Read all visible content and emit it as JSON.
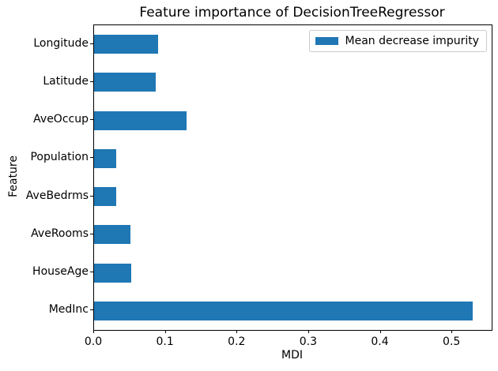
{
  "chart_data": {
    "type": "bar",
    "orientation": "horizontal",
    "title": "Feature importance of DecisionTreeRegressor",
    "xlabel": "MDI",
    "ylabel": "Feature",
    "categories_top_to_bottom": [
      "Longitude",
      "Latitude",
      "AveOccup",
      "Population",
      "AveBedrms",
      "AveRooms",
      "HouseAge",
      "MedInc"
    ],
    "values": [
      0.089,
      0.086,
      0.129,
      0.031,
      0.031,
      0.051,
      0.052,
      0.529
    ],
    "x_ticks": [
      {
        "value": 0.0,
        "label": "0.0"
      },
      {
        "value": 0.1,
        "label": "0.1"
      },
      {
        "value": 0.2,
        "label": "0.2"
      },
      {
        "value": 0.3,
        "label": "0.3"
      },
      {
        "value": 0.4,
        "label": "0.4"
      },
      {
        "value": 0.5,
        "label": "0.5"
      }
    ],
    "xlim": [
      0,
      0.555
    ],
    "grid": false,
    "bar_color": "#1f77b4",
    "legend": {
      "position": "upper right",
      "entries": [
        {
          "label": "Mean decrease impurity",
          "color": "#1f77b4"
        }
      ]
    }
  }
}
